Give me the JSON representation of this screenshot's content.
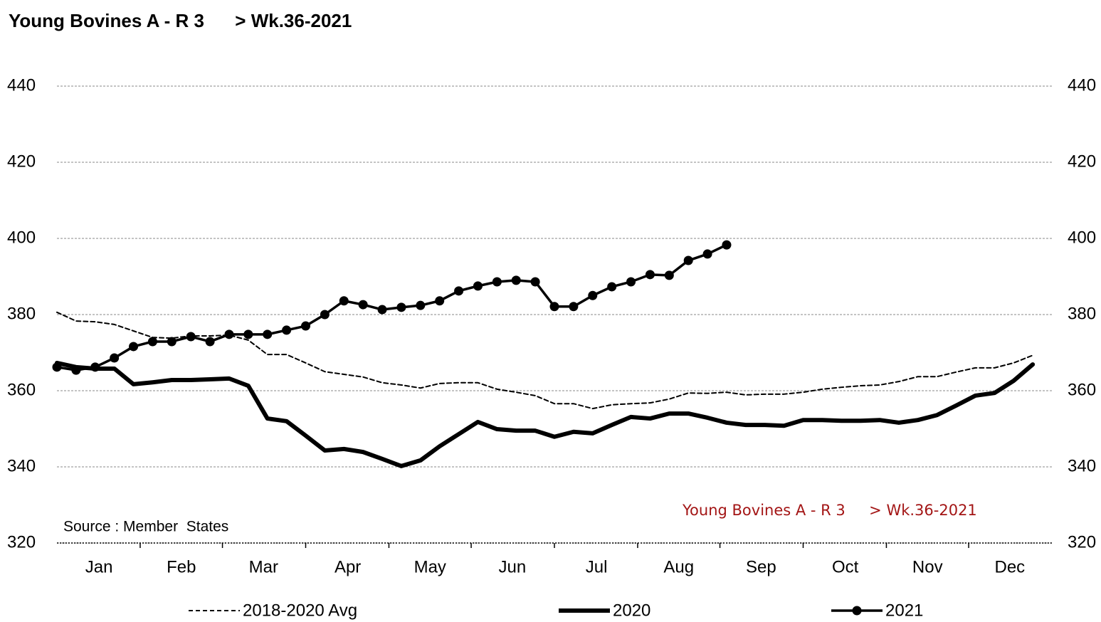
{
  "chart_data": {
    "type": "line",
    "title": "Young Bovines A - R 3      > Wk.36-2021",
    "annotations": [
      "Source : Member  States",
      "Young Bovines A - R 3     > Wk.36-2021"
    ],
    "x": [
      1,
      2,
      3,
      4,
      5,
      6,
      7,
      8,
      9,
      10,
      11,
      12,
      13,
      14,
      15,
      16,
      17,
      18,
      19,
      20,
      21,
      22,
      23,
      24,
      25,
      26,
      27,
      28,
      29,
      30,
      31,
      32,
      33,
      34,
      35,
      36,
      37,
      38,
      39,
      40,
      41,
      42,
      43,
      44,
      45,
      46,
      47,
      48,
      49,
      50,
      51,
      52
    ],
    "xlim": [
      1,
      53
    ],
    "xticks": [
      {
        "value": 3.2,
        "label": "Jan"
      },
      {
        "value": 7.5,
        "label": "Feb"
      },
      {
        "value": 11.8,
        "label": "Mar"
      },
      {
        "value": 16.2,
        "label": "Apr"
      },
      {
        "value": 20.5,
        "label": "May"
      },
      {
        "value": 24.8,
        "label": "Jun"
      },
      {
        "value": 29.2,
        "label": "Jul"
      },
      {
        "value": 33.5,
        "label": "Aug"
      },
      {
        "value": 37.8,
        "label": "Sep"
      },
      {
        "value": 42.2,
        "label": "Oct"
      },
      {
        "value": 46.5,
        "label": "Nov"
      },
      {
        "value": 50.8,
        "label": "Dec"
      }
    ],
    "ylim": [
      320,
      440
    ],
    "yticks": [
      320,
      340,
      360,
      380,
      400,
      420,
      440
    ],
    "grid": true,
    "right_axis_labels": true,
    "legend": "bottom",
    "series": [
      {
        "name": "2018-2020 Avg",
        "color": "#000000",
        "line_style": "dashed",
        "line_width": 2,
        "marker": "none",
        "values": [
          380.6,
          378.3,
          378.1,
          377.4,
          375.7,
          374.0,
          373.8,
          374.4,
          374.4,
          374.6,
          373.3,
          369.5,
          369.5,
          367.3,
          365.0,
          364.3,
          363.6,
          362.1,
          361.5,
          360.7,
          361.9,
          362.1,
          362.1,
          360.4,
          359.6,
          358.7,
          356.6,
          356.6,
          355.3,
          356.3,
          356.6,
          356.8,
          357.8,
          359.4,
          359.3,
          359.6,
          358.9,
          359.1,
          359.1,
          359.6,
          360.4,
          360.9,
          361.3,
          361.5,
          362.4,
          363.7,
          363.7,
          364.9,
          366.0,
          366.0,
          367.3,
          369.3
        ]
      },
      {
        "name": "2020",
        "color": "#000000",
        "line_style": "solid",
        "line_width": 6,
        "marker": "none",
        "values": [
          367.3,
          366.2,
          365.8,
          365.8,
          361.7,
          362.2,
          362.8,
          362.8,
          363.0,
          363.2,
          361.3,
          352.7,
          352.0,
          348.2,
          344.3,
          344.7,
          343.9,
          342.1,
          340.2,
          341.7,
          345.4,
          348.6,
          351.8,
          349.9,
          349.5,
          349.5,
          347.9,
          349.2,
          348.8,
          351.0,
          353.1,
          352.7,
          354.0,
          354.0,
          352.9,
          351.6,
          351.0,
          351.0,
          350.8,
          352.3,
          352.3,
          352.1,
          352.1,
          352.3,
          351.6,
          352.3,
          353.6,
          356.1,
          358.7,
          359.4,
          362.6,
          366.9
        ]
      },
      {
        "name": "2021",
        "color": "#000000",
        "line_style": "solid",
        "line_width": 3.5,
        "marker": "circle",
        "values": [
          366.2,
          365.4,
          366.2,
          368.6,
          371.6,
          372.9,
          372.9,
          374.2,
          372.9,
          374.8,
          374.8,
          374.8,
          375.9,
          377.0,
          380.0,
          383.6,
          382.6,
          381.3,
          381.9,
          382.4,
          383.6,
          386.2,
          387.5,
          388.6,
          389.0,
          388.6,
          382.1,
          382.1,
          385.0,
          387.3,
          388.6,
          390.5,
          390.3,
          394.2,
          395.9,
          398.3,
          null,
          null,
          null,
          null,
          null,
          null,
          null,
          null,
          null,
          null,
          null,
          null,
          null,
          null,
          null,
          null
        ]
      }
    ]
  }
}
